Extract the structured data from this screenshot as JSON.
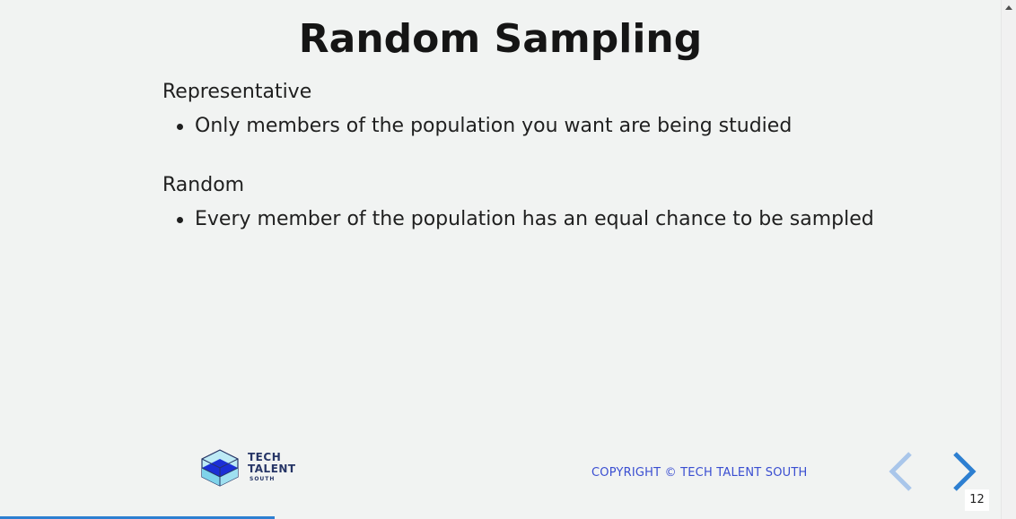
{
  "slide": {
    "title": "Random Sampling",
    "sections": [
      {
        "heading": "Representative",
        "bullets": [
          "Only members of the population you want are being studied"
        ]
      },
      {
        "heading": "Random",
        "bullets": [
          "Every member of the population has an equal chance to be sampled"
        ]
      }
    ]
  },
  "footer": {
    "logo_line1": "TECH",
    "logo_line2": "TALENT",
    "logo_line3": "SOUTH",
    "copyright": "COPYRIGHT © TECH TALENT SOUTH"
  },
  "navigation": {
    "prev_icon": "chevron-left-icon",
    "next_icon": "chevron-right-icon",
    "page_number": "12",
    "progress_fraction": 0.274
  },
  "colors": {
    "background": "#f1f3f2",
    "accent": "#2d7fd1",
    "copyright": "#3a4ed1",
    "logo_text": "#263566"
  }
}
